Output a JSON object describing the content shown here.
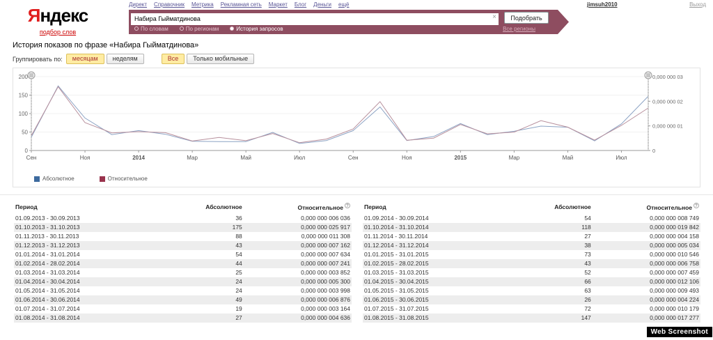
{
  "header": {
    "nav_links": [
      "Директ",
      "Справочник",
      "Метрика",
      "Рекламная сеть",
      "Маркет",
      "Блог",
      "Деньги",
      "ещё"
    ],
    "username": "jimsuh2010",
    "logout_label": "Выход",
    "logo_first_letter": "Я",
    "logo_rest": "ндекс",
    "logo_sub": "подбор слов"
  },
  "search": {
    "query": "Набира Гыйматдинова",
    "clear_icon": "×",
    "submit_label": "Подобрать",
    "tabs": [
      {
        "label": "По словам",
        "selected": false
      },
      {
        "label": "По регионам",
        "selected": false
      },
      {
        "label": "История запросов",
        "selected": true
      }
    ],
    "regions_link": "Все регионы"
  },
  "page": {
    "title": "История показов по фразе «Набира Гыйматдинова»",
    "group_label": "Группировать по:",
    "group_options": [
      {
        "label": "месяцам",
        "selected": true
      },
      {
        "label": "неделям",
        "selected": false
      }
    ],
    "device_options": [
      {
        "label": "Все",
        "selected": true
      },
      {
        "label": "Только мобильные",
        "selected": false
      }
    ]
  },
  "chart_data": {
    "type": "line",
    "x_labels": [
      "Сен",
      "Ноя",
      "2014",
      "Мар",
      "Май",
      "Июл",
      "Сен",
      "Ноя",
      "2015",
      "Мар",
      "Май",
      "Июл"
    ],
    "months_span": "01.09.2013 - 31.08.2015",
    "series": [
      {
        "name": "Абсолютное",
        "axis": "left",
        "line_color": "#8ca3c4",
        "legend_color": "#3d6a9e",
        "values": [
          36,
          175,
          88,
          43,
          54,
          44,
          25,
          24,
          24,
          49,
          19,
          27,
          54,
          118,
          27,
          38,
          73,
          43,
          52,
          66,
          63,
          26,
          72,
          147
        ]
      },
      {
        "name": "Относительное",
        "axis": "right",
        "line_color": "#b78f9c",
        "legend_color": "#99334d",
        "unit": "1e-9",
        "values": [
          6.036,
          25.917,
          11.308,
          7.162,
          7.634,
          7.241,
          3.852,
          5.3,
          3.998,
          6.876,
          3.164,
          4.636,
          8.749,
          19.842,
          4.158,
          5.034,
          10.546,
          6.758,
          7.459,
          12.106,
          9.493,
          4.224,
          10.179,
          17.277
        ]
      }
    ],
    "left_axis": {
      "ticks": [
        0,
        50,
        100,
        150,
        200
      ],
      "max": 200
    },
    "right_axis": {
      "tick_labels": [
        "0,000 000 03",
        "0,000 000 02",
        "0,000 000 01",
        "0"
      ],
      "max": 30
    },
    "legend_position": "bottom-left",
    "grid": true
  },
  "table": {
    "headers": {
      "period": "Период",
      "absolute": "Абсолютное",
      "relative": "Относительное"
    },
    "info_icon": "?",
    "left_rows": [
      [
        "01.09.2013 - 30.09.2013",
        "36",
        "0,000 000 006 036"
      ],
      [
        "01.10.2013 - 31.10.2013",
        "175",
        "0,000 000 025 917"
      ],
      [
        "01.11.2013 - 30.11.2013",
        "88",
        "0,000 000 011 308"
      ],
      [
        "01.12.2013 - 31.12.2013",
        "43",
        "0,000 000 007 162"
      ],
      [
        "01.01.2014 - 31.01.2014",
        "54",
        "0,000 000 007 634"
      ],
      [
        "01.02.2014 - 28.02.2014",
        "44",
        "0,000 000 007 241"
      ],
      [
        "01.03.2014 - 31.03.2014",
        "25",
        "0,000 000 003 852"
      ],
      [
        "01.04.2014 - 30.04.2014",
        "24",
        "0,000 000 005 300"
      ],
      [
        "01.05.2014 - 31.05.2014",
        "24",
        "0,000 000 003 998"
      ],
      [
        "01.06.2014 - 30.06.2014",
        "49",
        "0,000 000 006 876"
      ],
      [
        "01.07.2014 - 31.07.2014",
        "19",
        "0,000 000 003 164"
      ],
      [
        "01.08.2014 - 31.08.2014",
        "27",
        "0,000 000 004 636"
      ]
    ],
    "right_rows": [
      [
        "01.09.2014 - 30.09.2014",
        "54",
        "0,000 000 008 749"
      ],
      [
        "01.10.2014 - 31.10.2014",
        "118",
        "0,000 000 019 842"
      ],
      [
        "01.11.2014 - 30.11.2014",
        "27",
        "0,000 000 004 158"
      ],
      [
        "01.12.2014 - 31.12.2014",
        "38",
        "0,000 000 005 034"
      ],
      [
        "01.01.2015 - 31.01.2015",
        "73",
        "0,000 000 010 546"
      ],
      [
        "01.02.2015 - 28.02.2015",
        "43",
        "0,000 000 006 758"
      ],
      [
        "01.03.2015 - 31.03.2015",
        "52",
        "0,000 000 007 459"
      ],
      [
        "01.04.2015 - 30.04.2015",
        "66",
        "0,000 000 012 106"
      ],
      [
        "01.05.2015 - 31.05.2015",
        "63",
        "0,000 000 009 493"
      ],
      [
        "01.06.2015 - 30.06.2015",
        "26",
        "0,000 000 004 224"
      ],
      [
        "01.07.2015 - 31.07.2015",
        "72",
        "0,000 000 010 179"
      ],
      [
        "01.08.2015 - 31.08.2015",
        "147",
        "0,000 000 017 277"
      ]
    ]
  },
  "badge": "Web Screenshot",
  "colors": {
    "maroon_bar": "#8e4d60",
    "logo_red": "#e01e1e",
    "selected_button_bg": "#ffeca3",
    "legend_absolute": "#3d6a9e",
    "legend_relative": "#99334d",
    "zebra_row": "#ededed",
    "badge_bg": "#000000"
  }
}
